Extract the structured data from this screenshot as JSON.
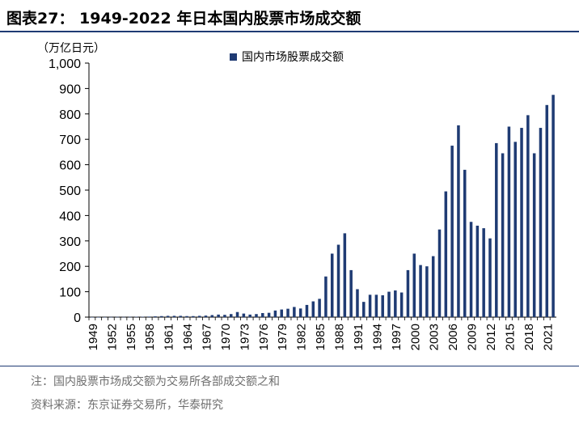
{
  "title": "图表27： 1949-2022 年日本国内股票市场成交额",
  "notes": {
    "note": "注：国内股票市场成交额为交易所各部成交额之和",
    "source": "资料来源：东京证券交易所，华泰研究"
  },
  "colors": {
    "bar": "#1f3b73",
    "axis": "#000000",
    "rule": "#1f3b73"
  },
  "chart_data": {
    "type": "bar",
    "unit_label": "（万亿日元）",
    "legend": "国内市场股票成交额",
    "legend_position": "top-center",
    "grid": false,
    "ylim": [
      0,
      1000
    ],
    "y_ticks": [
      0,
      100,
      200,
      300,
      400,
      500,
      600,
      700,
      800,
      900,
      1000
    ],
    "y_tick_labels": [
      "0",
      "100",
      "200",
      "300",
      "400",
      "500",
      "600",
      "700",
      "800",
      "900",
      "1,000"
    ],
    "x_tick_labels": [
      "1949",
      "1952",
      "1955",
      "1958",
      "1961",
      "1964",
      "1967",
      "1970",
      "1973",
      "1976",
      "1979",
      "1982",
      "1985",
      "1988",
      "1991",
      "1994",
      "1997",
      "2000",
      "2003",
      "2006",
      "2009",
      "2012",
      "2015",
      "2018",
      "2021"
    ],
    "categories": [
      1949,
      1950,
      1951,
      1952,
      1953,
      1954,
      1955,
      1956,
      1957,
      1958,
      1959,
      1960,
      1961,
      1962,
      1963,
      1964,
      1965,
      1966,
      1967,
      1968,
      1969,
      1970,
      1971,
      1972,
      1973,
      1974,
      1975,
      1976,
      1977,
      1978,
      1979,
      1980,
      1981,
      1982,
      1983,
      1984,
      1985,
      1986,
      1987,
      1988,
      1989,
      1990,
      1991,
      1992,
      1993,
      1994,
      1995,
      1996,
      1997,
      1998,
      1999,
      2000,
      2001,
      2002,
      2003,
      2004,
      2005,
      2006,
      2007,
      2008,
      2009,
      2010,
      2011,
      2012,
      2013,
      2014,
      2015,
      2016,
      2017,
      2018,
      2019,
      2020,
      2021,
      2022
    ],
    "values": [
      0.1,
      0.2,
      0.3,
      0.5,
      1,
      0.8,
      1,
      1.5,
      1.5,
      2,
      3,
      4,
      5,
      5,
      5,
      4,
      4,
      5,
      6,
      8,
      10,
      9,
      12,
      20,
      14,
      10,
      12,
      16,
      17,
      26,
      30,
      33,
      40,
      34,
      48,
      62,
      72,
      160,
      250,
      285,
      330,
      185,
      110,
      60,
      88,
      88,
      86,
      100,
      105,
      97,
      185,
      250,
      205,
      200,
      240,
      345,
      495,
      675,
      755,
      580,
      375,
      360,
      350,
      310,
      685,
      645,
      750,
      690,
      745,
      795,
      645,
      745,
      835,
      875
    ]
  }
}
